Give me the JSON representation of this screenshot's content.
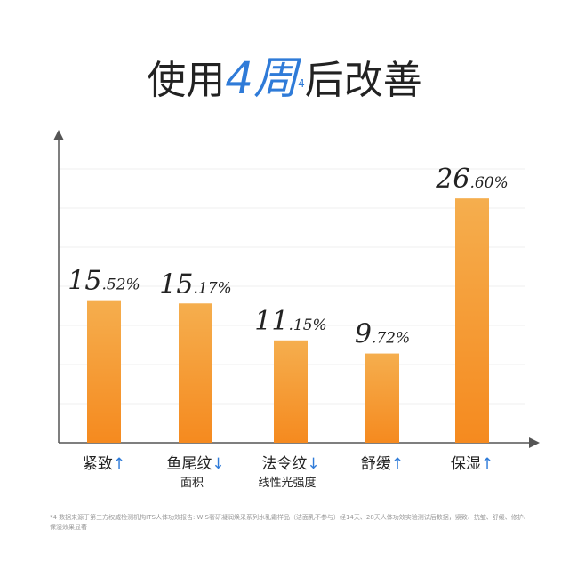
{
  "title": {
    "prefix": "使用",
    "highlight": "4周",
    "sup": "4",
    "suffix": "后改善"
  },
  "colors": {
    "bar_top": "#f5ae4e",
    "bar_bottom": "#f58a1f",
    "accent": "#2f7bd8",
    "axis": "#555555"
  },
  "chart_data": {
    "type": "bar",
    "categories": [
      "紧致",
      "鱼尾纹",
      "法令纹",
      "舒缓",
      "保湿"
    ],
    "subcategories": [
      "",
      "面积",
      "线性光强度",
      "",
      ""
    ],
    "arrows": [
      "↑",
      "↓",
      "↓",
      "↑",
      "↑"
    ],
    "values": [
      15.52,
      15.17,
      11.15,
      9.72,
      26.6
    ],
    "value_labels": [
      {
        "int": "15",
        "dec": ".52%"
      },
      {
        "int": "15",
        "dec": ".17%"
      },
      {
        "int": "11",
        "dec": ".15%"
      },
      {
        "int": "9",
        "dec": ".72%"
      },
      {
        "int": "26",
        "dec": ".60%"
      }
    ],
    "ylim": [
      0,
      42
    ],
    "grid": true,
    "xlabel": "",
    "ylabel": ""
  },
  "footnote": "*4 数据来源于第三方权威检测机构ITS人体功效报告: WIS奢研凝润焕采系列水乳霜样品（洁面乳不参与）经14天、28天人体功效实验测试后数据，紧致、抗皱、舒缓、修护、保湿效果显著"
}
